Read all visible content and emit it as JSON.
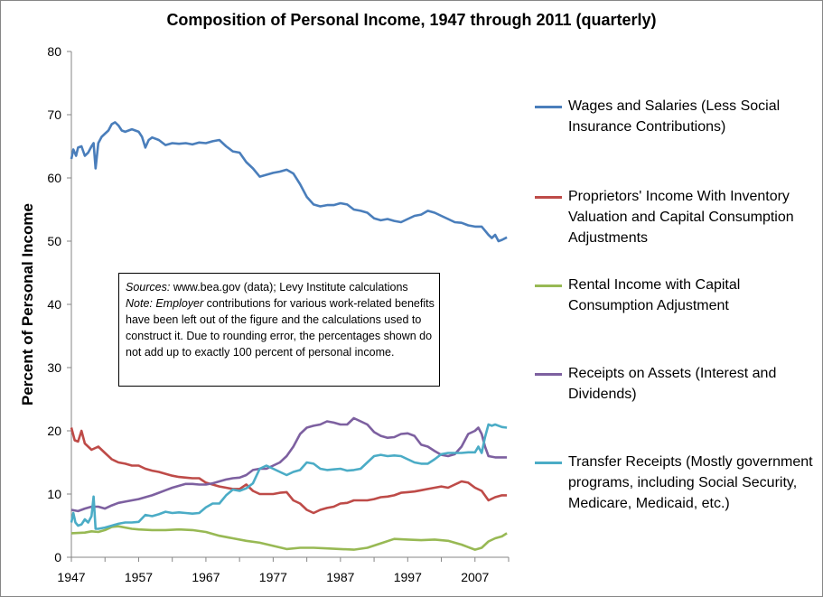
{
  "chart_data": {
    "type": "line",
    "title": "Composition of Personal Income, 1947 through 2011 (quarterly)",
    "xlabel": "",
    "ylabel": "Percent of Personal Income",
    "ylim": [
      0,
      80
    ],
    "xlim": [
      1947,
      2012
    ],
    "yticks": [
      "0",
      "10",
      "20",
      "30",
      "40",
      "50",
      "60",
      "70",
      "80"
    ],
    "xticks": [
      "1947",
      "1957",
      "1967",
      "1977",
      "1987",
      "1997",
      "2007"
    ],
    "legend_position": "right",
    "series": [
      {
        "name": "Wages and Salaries (Less Social Insurance Contributions)",
        "color": "#4a7ebb",
        "x": [
          1947,
          1947.3,
          1947.7,
          1948,
          1948.5,
          1949,
          1949.5,
          1950,
          1950.3,
          1950.6,
          1951,
          1951.5,
          1952,
          1952.5,
          1953,
          1953.5,
          1954,
          1954.5,
          1955,
          1955.5,
          1956,
          1957,
          1957.5,
          1958,
          1958.5,
          1959,
          1960,
          1961,
          1962,
          1963,
          1964,
          1965,
          1966,
          1967,
          1968,
          1969,
          1970,
          1971,
          1972,
          1973,
          1974,
          1975,
          1976,
          1977,
          1978,
          1979,
          1980,
          1981,
          1982,
          1983,
          1984,
          1985,
          1986,
          1987,
          1988,
          1989,
          1990,
          1991,
          1992,
          1993,
          1994,
          1995,
          1996,
          1997,
          1998,
          1999,
          2000,
          2001,
          2002,
          2003,
          2004,
          2005,
          2006,
          2007,
          2008,
          2009,
          2009.5,
          2010,
          2010.5,
          2011,
          2011.75
        ],
        "values": [
          63.0,
          64.5,
          63.5,
          64.8,
          65.0,
          63.5,
          64.0,
          65.0,
          65.5,
          61.5,
          65.5,
          66.5,
          67.0,
          67.5,
          68.5,
          68.8,
          68.3,
          67.5,
          67.3,
          67.5,
          67.7,
          67.3,
          66.5,
          64.8,
          66.0,
          66.4,
          66.0,
          65.2,
          65.5,
          65.4,
          65.5,
          65.3,
          65.6,
          65.5,
          65.8,
          66.0,
          65.0,
          64.2,
          64.0,
          62.5,
          61.5,
          60.2,
          60.5,
          60.8,
          61.0,
          61.3,
          60.7,
          59.0,
          57.0,
          55.8,
          55.5,
          55.7,
          55.7,
          56.0,
          55.8,
          55.0,
          54.8,
          54.5,
          53.6,
          53.3,
          53.5,
          53.2,
          53.0,
          53.5,
          54.0,
          54.2,
          54.8,
          54.5,
          54.0,
          53.5,
          53.0,
          52.9,
          52.5,
          52.3,
          52.3,
          51.0,
          50.5,
          51.0,
          50.0,
          50.2,
          50.6
        ]
      },
      {
        "name": "Proprietors' Income With Inventory Valuation and Capital Consumption Adjustments",
        "color": "#be4b48",
        "x": [
          1947,
          1947.5,
          1948,
          1948.5,
          1949,
          1950,
          1951,
          1952,
          1953,
          1954,
          1955,
          1956,
          1957,
          1958,
          1959,
          1960,
          1961,
          1962,
          1963,
          1964,
          1965,
          1966,
          1967,
          1968,
          1969,
          1970,
          1971,
          1972,
          1973,
          1974,
          1975,
          1976,
          1977,
          1978,
          1979,
          1980,
          1981,
          1982,
          1983,
          1984,
          1985,
          1986,
          1987,
          1988,
          1989,
          1990,
          1991,
          1992,
          1993,
          1994,
          1995,
          1996,
          1997,
          1998,
          1999,
          2000,
          2001,
          2002,
          2003,
          2004,
          2005,
          2006,
          2007,
          2008,
          2009,
          2010,
          2011,
          2011.75
        ],
        "values": [
          20.5,
          18.5,
          18.3,
          20.0,
          18.0,
          17.0,
          17.5,
          16.5,
          15.5,
          15.0,
          14.8,
          14.5,
          14.5,
          14.0,
          13.7,
          13.5,
          13.2,
          12.9,
          12.7,
          12.6,
          12.5,
          12.5,
          11.8,
          11.5,
          11.2,
          11.0,
          10.8,
          10.8,
          11.5,
          10.5,
          10.0,
          10.0,
          10.0,
          10.2,
          10.3,
          9.0,
          8.5,
          7.5,
          7.0,
          7.5,
          7.8,
          8.0,
          8.5,
          8.6,
          9.0,
          9.0,
          9.0,
          9.2,
          9.5,
          9.6,
          9.8,
          10.2,
          10.3,
          10.4,
          10.6,
          10.8,
          11.0,
          11.2,
          11.0,
          11.5,
          12.0,
          11.8,
          11.0,
          10.5,
          9.0,
          9.5,
          9.8,
          9.8
        ]
      },
      {
        "name": "Rental Income with Capital Consumption Adjustment",
        "color": "#98b954",
        "x": [
          1947,
          1949,
          1950,
          1951,
          1952,
          1953,
          1954,
          1955,
          1956,
          1957,
          1959,
          1961,
          1963,
          1965,
          1967,
          1969,
          1971,
          1973,
          1975,
          1977,
          1979,
          1981,
          1983,
          1985,
          1987,
          1989,
          1991,
          1993,
          1995,
          1997,
          1999,
          2001,
          2003,
          2005,
          2006,
          2007,
          2008,
          2009,
          2010,
          2011,
          2011.75
        ],
        "values": [
          3.8,
          3.9,
          4.1,
          4.0,
          4.3,
          4.8,
          4.9,
          4.7,
          4.5,
          4.4,
          4.3,
          4.3,
          4.4,
          4.3,
          4.0,
          3.4,
          3.0,
          2.6,
          2.3,
          1.8,
          1.3,
          1.5,
          1.5,
          1.4,
          1.3,
          1.2,
          1.5,
          2.2,
          2.9,
          2.8,
          2.7,
          2.8,
          2.6,
          2.0,
          1.6,
          1.2,
          1.5,
          2.5,
          3.0,
          3.3,
          3.8
        ]
      },
      {
        "name": "Receipts on Assets (Interest and Dividends)",
        "color": "#7d60a0",
        "x": [
          1947,
          1948,
          1949,
          1950,
          1951,
          1952,
          1953,
          1954,
          1955,
          1956,
          1957,
          1958,
          1959,
          1960,
          1961,
          1962,
          1963,
          1964,
          1965,
          1966,
          1967,
          1968,
          1969,
          1970,
          1971,
          1972,
          1973,
          1974,
          1975,
          1976,
          1977,
          1978,
          1979,
          1980,
          1981,
          1982,
          1983,
          1984,
          1985,
          1986,
          1987,
          1988,
          1989,
          1990,
          1991,
          1992,
          1993,
          1994,
          1995,
          1996,
          1997,
          1998,
          1999,
          2000,
          2001,
          2002,
          2003,
          2004,
          2005,
          2006,
          2007,
          2007.5,
          2008,
          2008.5,
          2009,
          2010,
          2011,
          2011.75
        ],
        "values": [
          7.5,
          7.3,
          7.7,
          8.0,
          8.0,
          7.7,
          8.2,
          8.6,
          8.8,
          9.0,
          9.2,
          9.5,
          9.8,
          10.2,
          10.6,
          11.0,
          11.3,
          11.6,
          11.6,
          11.5,
          11.5,
          11.7,
          12.0,
          12.3,
          12.5,
          12.6,
          13.0,
          13.8,
          14.0,
          14.0,
          14.5,
          15.0,
          16.0,
          17.5,
          19.5,
          20.5,
          20.8,
          21.0,
          21.5,
          21.3,
          21.0,
          21.0,
          22.0,
          21.5,
          21.0,
          19.8,
          19.2,
          18.9,
          19.0,
          19.5,
          19.6,
          19.2,
          17.8,
          17.5,
          16.8,
          16.2,
          16.0,
          16.3,
          17.5,
          19.5,
          20.0,
          20.5,
          19.5,
          17.5,
          16.0,
          15.8,
          15.8,
          15.8
        ]
      },
      {
        "name": "Transfer Receipts (Mostly government programs, including Social Security, Medicare, Medicaid, etc.)",
        "color": "#4bacc6",
        "x": [
          1947,
          1947.3,
          1947.6,
          1948,
          1948.5,
          1949,
          1949.5,
          1950,
          1950.3,
          1950.6,
          1951,
          1952,
          1953,
          1954,
          1955,
          1956,
          1957,
          1958,
          1959,
          1960,
          1961,
          1962,
          1963,
          1964,
          1965,
          1966,
          1967,
          1968,
          1969,
          1970,
          1971,
          1972,
          1973,
          1974,
          1975,
          1976,
          1977,
          1978,
          1979,
          1980,
          1981,
          1982,
          1983,
          1984,
          1985,
          1986,
          1987,
          1988,
          1989,
          1990,
          1991,
          1992,
          1993,
          1994,
          1995,
          1996,
          1997,
          1998,
          1999,
          2000,
          2001,
          2002,
          2003,
          2004,
          2005,
          2006,
          2007,
          2007.5,
          2008,
          2008.5,
          2009,
          2009.5,
          2010,
          2011,
          2011.75
        ],
        "values": [
          5.5,
          7.0,
          5.5,
          5.0,
          5.2,
          6.0,
          5.5,
          6.5,
          9.6,
          4.5,
          4.5,
          4.7,
          5.0,
          5.3,
          5.5,
          5.5,
          5.6,
          6.7,
          6.5,
          6.8,
          7.2,
          7.0,
          7.1,
          7.0,
          6.9,
          7.0,
          7.9,
          8.5,
          8.5,
          9.8,
          10.7,
          10.5,
          10.9,
          11.7,
          14.0,
          14.5,
          14.0,
          13.5,
          13.0,
          13.5,
          13.8,
          15.0,
          14.8,
          14.0,
          13.8,
          13.9,
          14.0,
          13.7,
          13.8,
          14.0,
          15.0,
          16.0,
          16.2,
          16.0,
          16.1,
          16.0,
          15.5,
          15.0,
          14.8,
          14.8,
          15.5,
          16.3,
          16.5,
          16.5,
          16.5,
          16.6,
          16.6,
          17.5,
          16.5,
          19.0,
          21.0,
          20.8,
          21.0,
          20.6,
          20.5
        ]
      }
    ]
  },
  "note": {
    "sources_label": "Sources:",
    "sources_text": " www.bea.gov (data); Levy Institute calculations",
    "note_label": "Note: Employer",
    "note_text": " contributions for various work-related benefits have been left out of the figure and the calculations used to construct it. Due to rounding error, the percentages shown do not add up to exactly 100  percent of personal income."
  }
}
